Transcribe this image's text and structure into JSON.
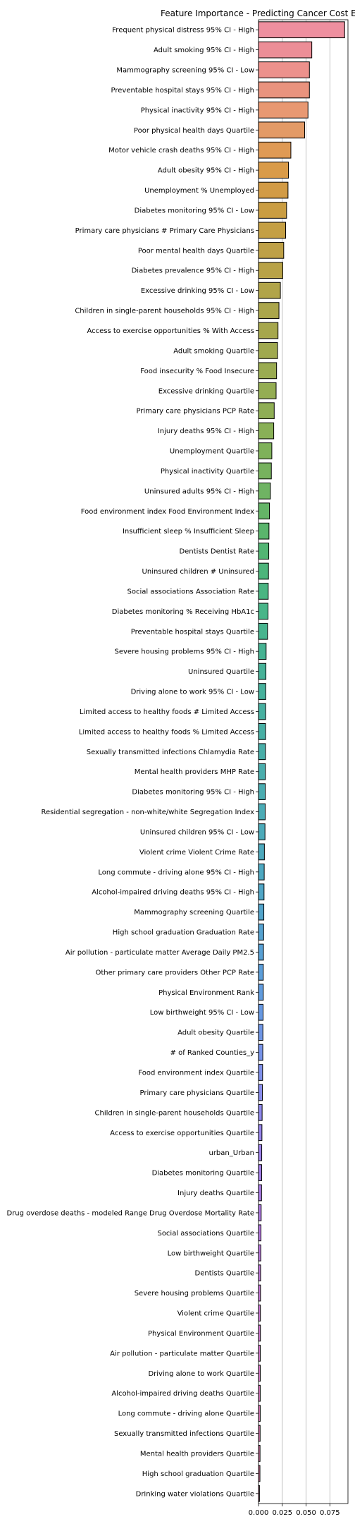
{
  "chart_data": {
    "type": "bar",
    "orientation": "horizontal",
    "title": "Feature Importance - Predicting Cancer Cost E",
    "xlabel": "",
    "ylabel": "",
    "xlim": [
      0,
      0.094
    ],
    "xticks": [
      "0.000",
      "0.025",
      "0.050",
      "0.075"
    ],
    "grid": "vertical",
    "categories": [
      "Frequent physical distress 95% CI - High",
      "Adult smoking 95% CI - High",
      "Mammography screening 95% CI - Low",
      "Preventable hospital stays 95% CI - High",
      "Physical inactivity 95% CI - High",
      "Poor physical health days Quartile",
      "Motor vehicle crash deaths 95% CI - High",
      "Adult obesity 95% CI - High",
      "Unemployment % Unemployed",
      "Diabetes monitoring 95% CI - Low",
      "Primary care physicians # Primary Care Physicians",
      "Poor mental health days Quartile",
      "Diabetes prevalence 95% CI - High",
      "Excessive drinking 95% CI - Low",
      "Children in single-parent households 95% CI - High",
      "Access to exercise opportunities % With Access",
      "Adult smoking Quartile",
      "Food insecurity % Food Insecure",
      "Excessive drinking Quartile",
      "Primary care physicians PCP Rate",
      "Injury deaths 95% CI - High",
      "Unemployment Quartile",
      "Physical inactivity Quartile",
      "Uninsured adults 95% CI - High",
      "Food environment index Food Environment Index",
      "Insufficient sleep % Insufficient Sleep",
      "Dentists Dentist Rate",
      "Uninsured children # Uninsured",
      "Social associations Association Rate",
      "Diabetes monitoring % Receiving HbA1c",
      "Preventable hospital stays Quartile",
      "Severe housing problems 95% CI - High",
      "Uninsured Quartile",
      "Driving alone to work 95% CI - Low",
      "Limited access to healthy foods # Limited Access",
      "Limited access to healthy foods % Limited Access",
      "Sexually transmitted infections Chlamydia Rate",
      "Mental health providers MHP Rate",
      "Diabetes monitoring 95% CI - High",
      "Residential segregation - non-white/white Segregation Index",
      "Uninsured children 95% CI - Low",
      "Violent crime Violent Crime Rate",
      "Long commute - driving alone 95% CI - High",
      "Alcohol-impaired driving deaths 95% CI - High",
      "Mammography screening Quartile",
      "High school graduation Graduation Rate",
      "Air pollution - particulate matter Average Daily PM2.5",
      "Other primary care providers Other PCP Rate",
      "Physical Environment Rank",
      "Low birthweight 95% CI - Low",
      "Adult obesity Quartile",
      "# of Ranked Counties_y",
      "Food environment index Quartile",
      "Primary care physicians Quartile",
      "Children in single-parent households Quartile",
      "Access to exercise opportunities Quartile",
      "urban_Urban",
      "Diabetes monitoring Quartile",
      "Injury deaths Quartile",
      "Drug overdose deaths - modeled Range Drug Overdose Mortality Rate",
      "Social associations Quartile",
      "Low birthweight Quartile",
      "Dentists Quartile",
      "Severe housing problems Quartile",
      "Violent crime Quartile",
      "Physical Environment Quartile",
      "Air pollution - particulate matter Quartile",
      "Driving alone to work Quartile",
      "Alcohol-impaired driving deaths Quartile",
      "Long commute - driving alone Quartile",
      "Sexually transmitted infections Quartile",
      "Mental health providers Quartile",
      "High school graduation Quartile",
      "Drinking water violations Quartile"
    ],
    "values": [
      0.0905,
      0.056,
      0.0535,
      0.0535,
      0.052,
      0.0485,
      0.034,
      0.0315,
      0.031,
      0.0295,
      0.0285,
      0.0265,
      0.0255,
      0.023,
      0.0215,
      0.0205,
      0.02,
      0.019,
      0.0185,
      0.0165,
      0.016,
      0.014,
      0.0135,
      0.0125,
      0.0115,
      0.011,
      0.0108,
      0.0105,
      0.0102,
      0.01,
      0.0095,
      0.008,
      0.0078,
      0.0076,
      0.0075,
      0.0074,
      0.0073,
      0.0072,
      0.0071,
      0.007,
      0.0068,
      0.0062,
      0.006,
      0.0058,
      0.0056,
      0.0054,
      0.0052,
      0.005,
      0.005,
      0.0048,
      0.0046,
      0.0045,
      0.0043,
      0.0041,
      0.0038,
      0.0036,
      0.0034,
      0.0033,
      0.0032,
      0.0028,
      0.0026,
      0.0024,
      0.0022,
      0.0021,
      0.002,
      0.002,
      0.0019,
      0.0019,
      0.0018,
      0.0018,
      0.0017,
      0.0016,
      0.0015,
      0.001
    ],
    "colors": [
      "#ee8f9f",
      "#ec8e97",
      "#ec918c",
      "#e9937e",
      "#e89872",
      "#e39a66",
      "#df9a55",
      "#d99b49",
      "#d29b45",
      "#ca9d42",
      "#c49f44",
      "#bea046",
      "#b8a247",
      "#b1a449",
      "#aba64b",
      "#a6a74d",
      "#a0a94f",
      "#9aab51",
      "#94ad53",
      "#8fae55",
      "#89b057",
      "#7fb15a",
      "#77b25e",
      "#6fb363",
      "#64b467",
      "#5ab56c",
      "#52b573",
      "#4db57b",
      "#4ab582",
      "#48b588",
      "#47b48e",
      "#46b393",
      "#46b298",
      "#46b19c",
      "#46b0a0",
      "#47afa4",
      "#48aea8",
      "#49adac",
      "#4aacb0",
      "#4babb5",
      "#4caab9",
      "#4da9bd",
      "#4ea8c1",
      "#50a6c6",
      "#52a4cb",
      "#55a2d0",
      "#58a0d4",
      "#5c9ed9",
      "#619bdd",
      "#6798e1",
      "#6e95e4",
      "#7692e7",
      "#7e8fe9",
      "#878bea",
      "#8f88eb",
      "#9785eb",
      "#9e82eb",
      "#a57fea",
      "#ac7ce8",
      "#b27ae6",
      "#b878e3",
      "#bd76e0",
      "#c275dc",
      "#c774d8",
      "#cb73d3",
      "#cf73ce",
      "#d273c9",
      "#d574c4",
      "#d875be",
      "#da77b8",
      "#dc79b2",
      "#de7bac",
      "#df7ea6",
      "#e081a0"
    ]
  }
}
